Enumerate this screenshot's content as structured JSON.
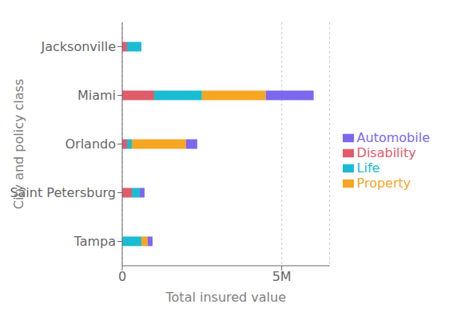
{
  "chart_data": {
    "type": "bar",
    "orientation": "horizontal",
    "stacked": true,
    "xlabel": "Total insured value",
    "ylabel": "City and policy class",
    "categories": [
      "Jacksonville",
      "Miami",
      "Orlando",
      "Saint Petersburg",
      "Tampa"
    ],
    "series": [
      {
        "name": "Disability",
        "color": "#E05C6A",
        "values": [
          150000,
          1000000,
          150000,
          300000,
          0
        ]
      },
      {
        "name": "Life",
        "color": "#1ABCD4",
        "values": [
          450000,
          1500000,
          150000,
          250000,
          600000
        ]
      },
      {
        "name": "Property",
        "color": "#F5A623",
        "values": [
          0,
          2000000,
          1700000,
          0,
          200000
        ]
      },
      {
        "name": "Automobile",
        "color": "#7B68EE",
        "values": [
          0,
          1500000,
          350000,
          150000,
          150000
        ]
      }
    ],
    "xlim": [
      0,
      6500000
    ],
    "xticks": [
      0,
      {
        "value": 5000000,
        "label": "5M"
      }
    ],
    "grid": true,
    "legend": "right"
  }
}
